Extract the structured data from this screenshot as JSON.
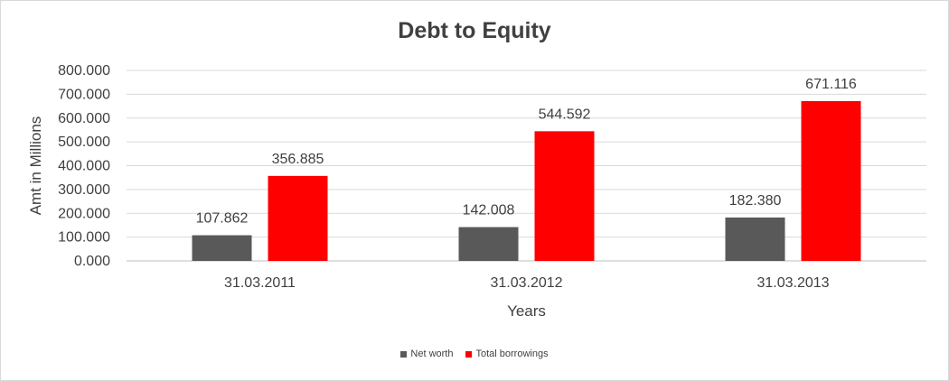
{
  "chart_data": {
    "type": "bar",
    "title": "Debt to Equity",
    "xlabel": "Years",
    "ylabel": "Amt in Millions",
    "categories": [
      "31.03.2011",
      "31.03.2012",
      "31.03.2013"
    ],
    "series": [
      {
        "name": "Net worth",
        "values": [
          107.862,
          142.008,
          182.38
        ],
        "labels": [
          "107.862",
          "142.008",
          "182.380"
        ],
        "color": "#595959"
      },
      {
        "name": "Total borrowings",
        "values": [
          356.885,
          544.592,
          671.116
        ],
        "labels": [
          "356.885",
          "544.592",
          "671.116"
        ],
        "color": "#ff0000"
      }
    ],
    "ylim": [
      0,
      800
    ],
    "yticks": [
      0,
      100,
      200,
      300,
      400,
      500,
      600,
      700,
      800
    ],
    "ytick_labels": [
      "0.000",
      "100.000",
      "200.000",
      "300.000",
      "400.000",
      "500.000",
      "600.000",
      "700.000",
      "800.000"
    ],
    "grid": true,
    "legend_position": "bottom"
  }
}
